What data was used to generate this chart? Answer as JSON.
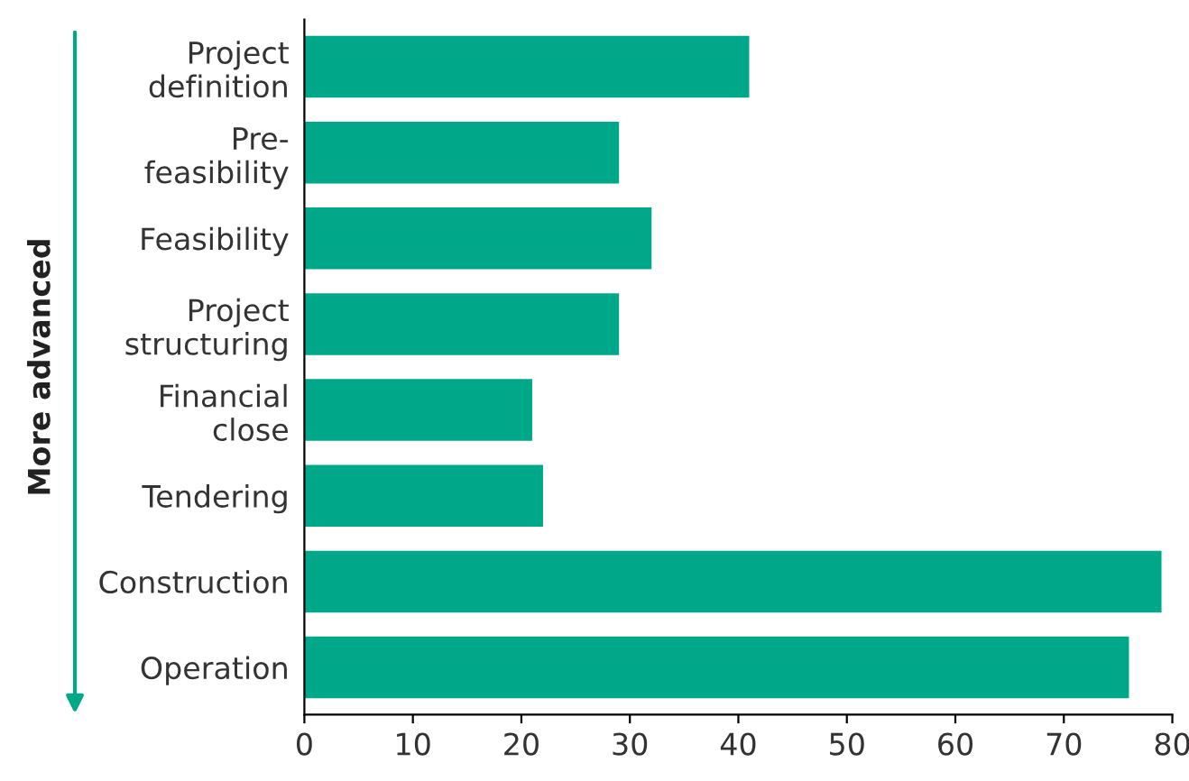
{
  "chart_data": {
    "type": "bar",
    "orientation": "horizontal",
    "ylabel": "More advanced",
    "categories": [
      "Project\ndefinition",
      "Pre-\nfeasibility",
      "Feasibility",
      "Project\nstructuring",
      "Financial\nclose",
      "Tendering",
      "Construction",
      "Operation"
    ],
    "values": [
      41,
      29,
      32,
      29,
      21,
      22,
      79,
      76
    ],
    "color": "#00a88a",
    "xlim": [
      0,
      80
    ],
    "xticks": [
      0,
      10,
      20,
      30,
      40,
      50,
      60,
      70,
      80
    ],
    "grid": false,
    "legend": false
  }
}
